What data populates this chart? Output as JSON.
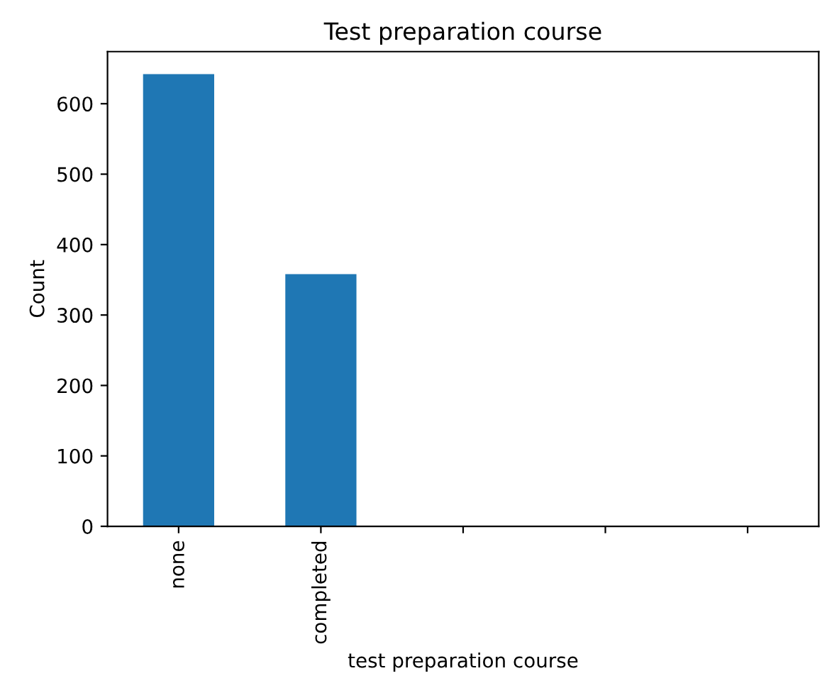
{
  "chart_data": {
    "type": "bar",
    "title": "Test preparation course",
    "xlabel": "test preparation course",
    "ylabel": "Count",
    "categories": [
      "none",
      "completed",
      null,
      null,
      null
    ],
    "values": [
      642,
      358,
      null,
      null,
      null
    ],
    "color": "#1f77b4",
    "ylim": [
      0,
      674
    ],
    "yticks": [
      0,
      100,
      200,
      300,
      400,
      500,
      600
    ],
    "grid": false
  }
}
